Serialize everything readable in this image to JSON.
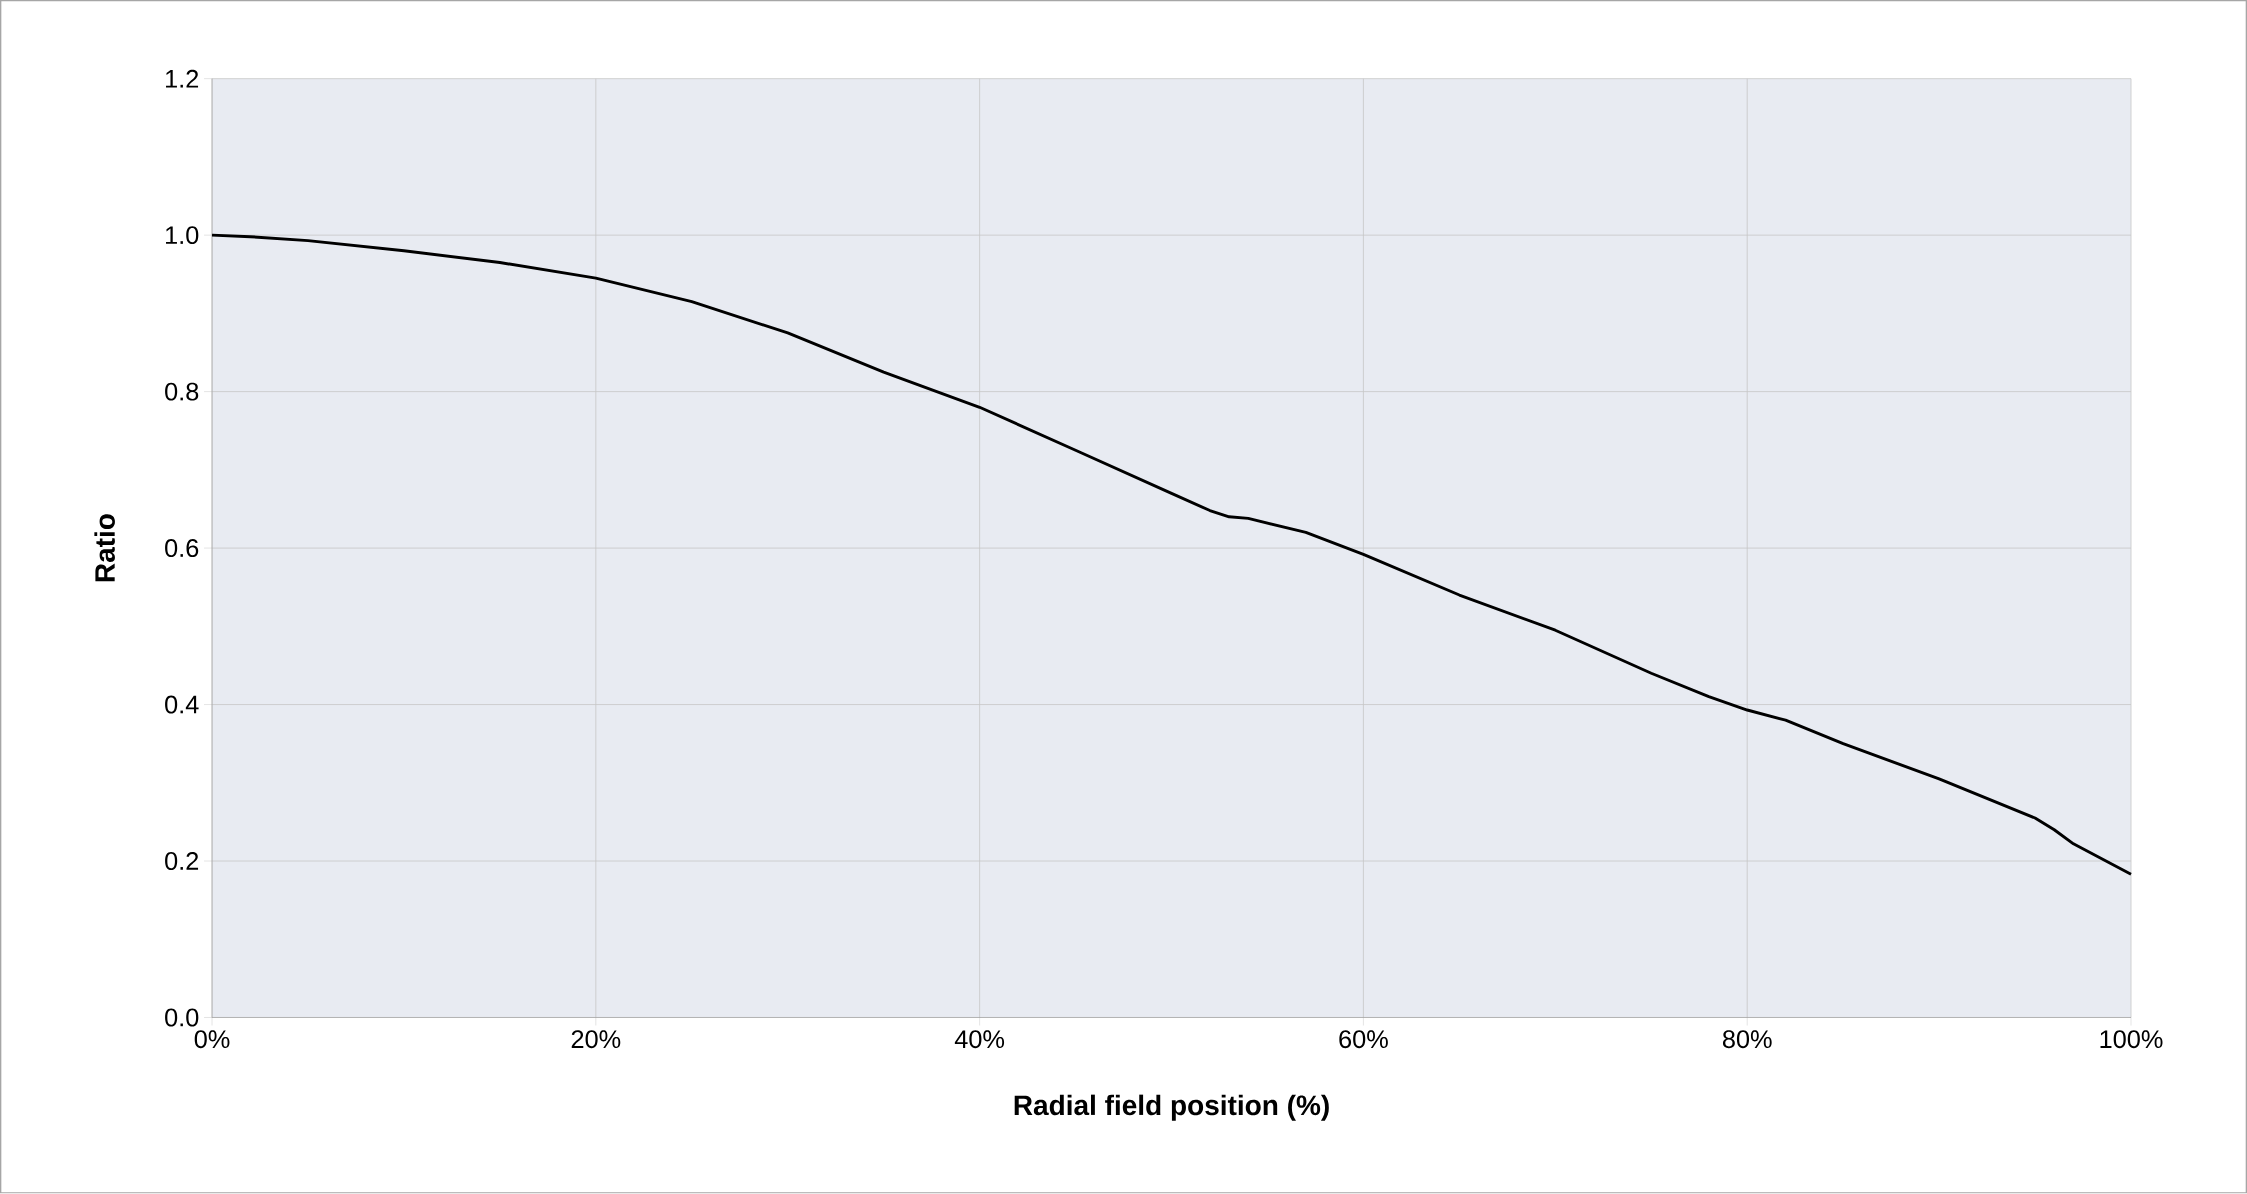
{
  "chart_data": {
    "type": "line",
    "xlabel": "Radial field position (%)",
    "ylabel": "Ratio",
    "series": [
      {
        "color": "#000000",
        "x": [
          0,
          2,
          5,
          10,
          15,
          20,
          25,
          30,
          35,
          40,
          45,
          50,
          52,
          53,
          54,
          57,
          60,
          65,
          70,
          75,
          78,
          80,
          82,
          85,
          90,
          95,
          96,
          97,
          100
        ],
        "values": [
          1.0,
          0.998,
          0.993,
          0.98,
          0.965,
          0.945,
          0.915,
          0.875,
          0.825,
          0.78,
          0.725,
          0.67,
          0.648,
          0.64,
          0.638,
          0.62,
          0.592,
          0.54,
          0.495,
          0.44,
          0.41,
          0.393,
          0.38,
          0.35,
          0.305,
          0.255,
          0.24,
          0.222,
          0.183
        ]
      }
    ],
    "xlim": [
      0,
      100
    ],
    "ylim": [
      0,
      1.2
    ],
    "xticks": [
      {
        "value": 0,
        "label": "0%"
      },
      {
        "value": 20,
        "label": "20%"
      },
      {
        "value": 40,
        "label": "40%"
      },
      {
        "value": 60,
        "label": "60%"
      },
      {
        "value": 80,
        "label": "80%"
      },
      {
        "value": 100,
        "label": "100%"
      }
    ],
    "yticks": [
      {
        "value": 0,
        "label": "0.0"
      },
      {
        "value": 0.2,
        "label": "0.2"
      },
      {
        "value": 0.4,
        "label": "0.4"
      },
      {
        "value": 0.6,
        "label": "0.6"
      },
      {
        "value": 0.8,
        "label": "0.8"
      },
      {
        "value": 1.0,
        "label": "1.0"
      },
      {
        "value": 1.2,
        "label": "1.2"
      }
    ],
    "grid": true,
    "marker": "none",
    "line_style": "solid"
  }
}
